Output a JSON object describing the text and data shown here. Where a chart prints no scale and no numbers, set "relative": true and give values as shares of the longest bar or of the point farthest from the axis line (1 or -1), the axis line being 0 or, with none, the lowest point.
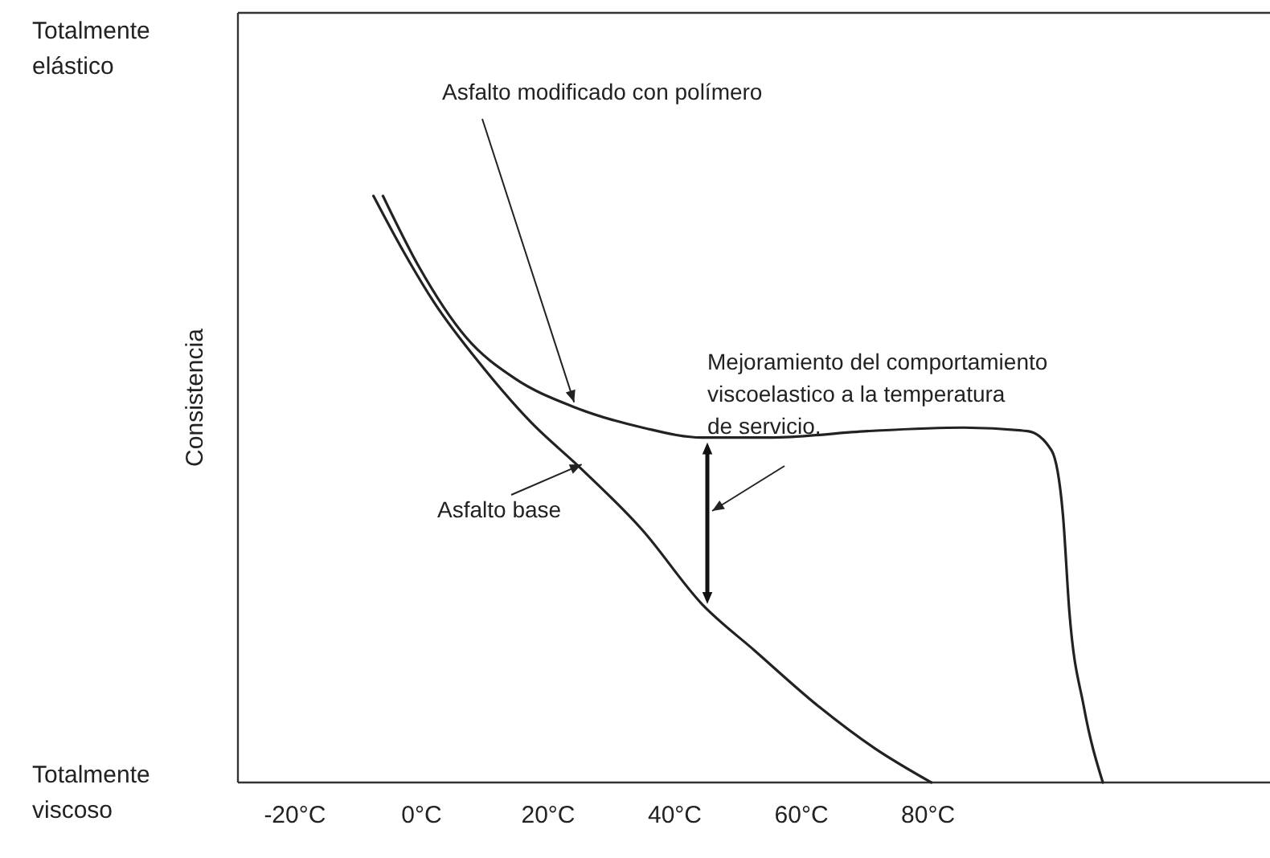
{
  "chart_data": {
    "type": "line",
    "relative": true,
    "ylabel": "Consistencia",
    "xlim": [
      -29,
      134
    ],
    "xticks": [
      {
        "value": -20,
        "label": "-20°C"
      },
      {
        "value": 0,
        "label": "0°C"
      },
      {
        "value": 20,
        "label": "20°C"
      },
      {
        "value": 40,
        "label": "40°C"
      },
      {
        "value": 60,
        "label": "60°C"
      },
      {
        "value": 80,
        "label": "80°C"
      }
    ],
    "marker": "none",
    "line_style": "solid",
    "series": [
      {
        "name": "Asfalto modificado con polímero",
        "color": "#222222",
        "x": [
          -6.1,
          -0.5,
          7.1,
          14.7,
          24.1,
          34.9,
          44.3,
          55.2,
          70.4,
          85.6,
          95.7,
          99.5,
          101.3,
          102.3,
          104.6,
          107.6
        ],
        "values": [
          1.0,
          0.881,
          0.758,
          0.689,
          0.64,
          0.605,
          0.588,
          0.588,
          0.599,
          0.605,
          0.599,
          0.566,
          0.456,
          0.293,
          0.129,
          0
        ]
      },
      {
        "name": "Asfalto base",
        "color": "#222222",
        "x": [
          -7.6,
          -3,
          2,
          9.6,
          17.2,
          25.3,
          34.9,
          44.3,
          52.7,
          62.8,
          71.6,
          80.5
        ],
        "values": [
          1.0,
          0.908,
          0.818,
          0.709,
          0.615,
          0.534,
          0.43,
          0.304,
          0.224,
          0.129,
          0.058,
          0
        ]
      }
    ],
    "annotations": [
      "Totalmente elástico",
      "Totalmente viscoso",
      "Mejoramiento del comportamiento viscoelastico a la temperatura de servicio."
    ]
  }
}
